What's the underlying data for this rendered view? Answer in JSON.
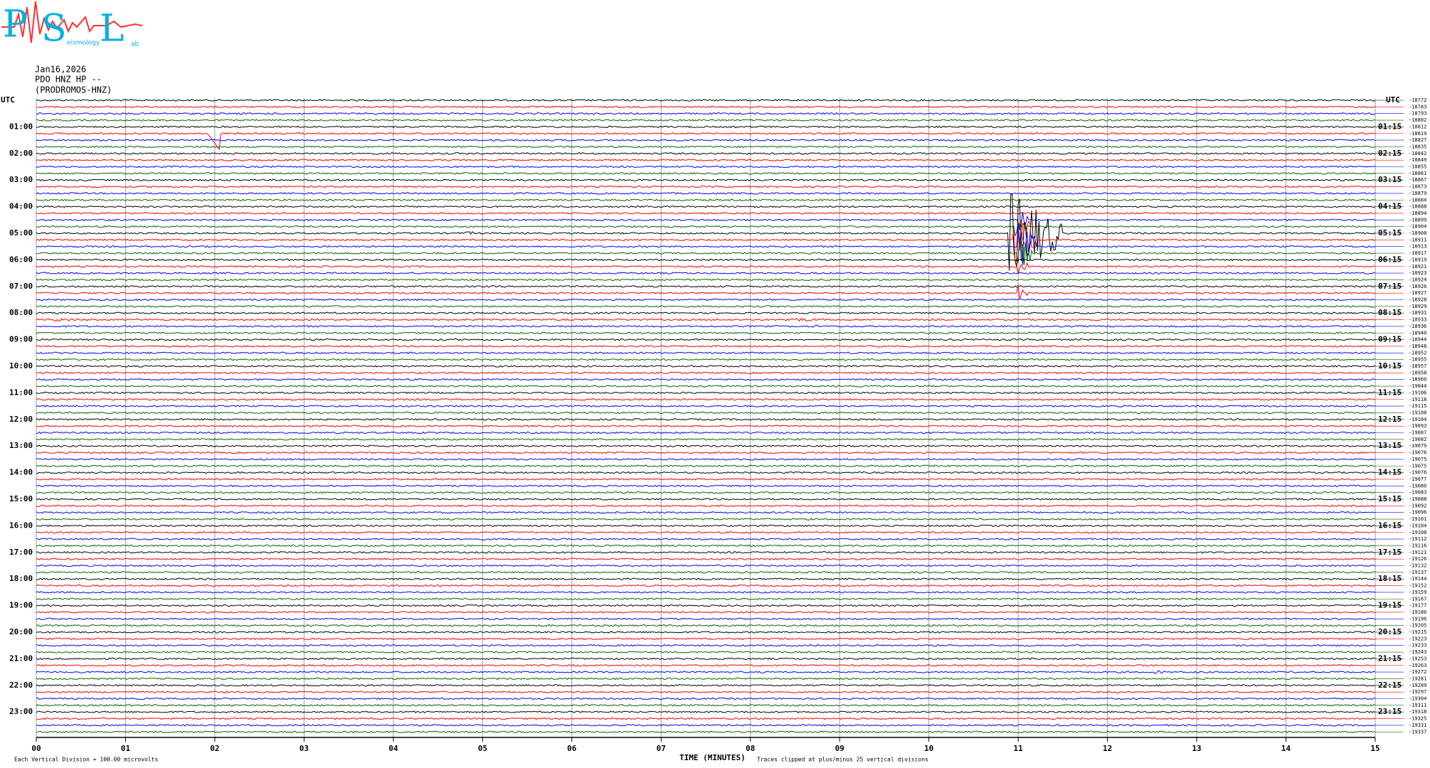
{
  "header": {
    "logo_letters": [
      "P",
      "S",
      "L"
    ],
    "logo_small": [
      "eismology",
      "ab"
    ],
    "date": "Jan16,2026",
    "station": "PDO HNZ HP --",
    "channel": "(PRODROMOS-HNZ)"
  },
  "chart_data": {
    "type": "helicorder",
    "left_axis_label": "UTC",
    "right_axis_label": "UTC",
    "left_time_labels": [
      "01:00",
      "02:00",
      "03:00",
      "04:00",
      "05:00",
      "06:00",
      "07:00",
      "08:00",
      "09:00",
      "10:00",
      "11:00",
      "12:00",
      "13:00",
      "14:00",
      "15:00",
      "16:00",
      "17:00",
      "18:00",
      "19:00",
      "20:00",
      "21:00",
      "22:00",
      "23:00"
    ],
    "right_time_labels": [
      "01:15",
      "02:15",
      "03:15",
      "04:15",
      "05:15",
      "06:15",
      "07:15",
      "08:15",
      "09:15",
      "10:15",
      "11:15",
      "12:15",
      "13:15",
      "14:15",
      "15:15",
      "16:15",
      "17:15",
      "18:15",
      "19:15",
      "20:15",
      "21:15",
      "22:15",
      "23:15"
    ],
    "trace_colors": [
      "#000000",
      "#ff0000",
      "#0000ff",
      "#006400"
    ],
    "trace_offsets": [
      -18772,
      -18783,
      -18793,
      -18802,
      -18812,
      -18819,
      -18827,
      -18835,
      -18842,
      -18849,
      -18855,
      -18861,
      -18867,
      -18873,
      -18879,
      -18884,
      -18888,
      -18894,
      -18899,
      -18904,
      -18908,
      -18911,
      -18913,
      -18917,
      -18919,
      -18921,
      -18923,
      -18924,
      -18926,
      -18927,
      -18928,
      -18929,
      -18931,
      -18933,
      -18936,
      -18940,
      -18944,
      -18948,
      -18952,
      -18955,
      -18957,
      -18958,
      -18960,
      -19044,
      -19106,
      -19118,
      -19115,
      -19108,
      -19104,
      -19093,
      -19087,
      -19082,
      -19079,
      -19076,
      -19075,
      -19075,
      -19076,
      -19077,
      -19080,
      -19083,
      -19088,
      -19092,
      -19096,
      -19101,
      -19104,
      -19108,
      -19112,
      -19116,
      -19121,
      -19126,
      -19132,
      -19137,
      -19144,
      -19152,
      -19159,
      -19167,
      -19177,
      -19186,
      -19196,
      -19205,
      -19215,
      -19223,
      -19233,
      -19243,
      -19253,
      -19263,
      -19272,
      -19281,
      -19289,
      -19297,
      -19304,
      -19311,
      -19318,
      -19325,
      -19331,
      -19337
    ],
    "xlabel": "TIME (MINUTES)",
    "xlim": [
      0,
      15
    ],
    "xticks": [
      {
        "value": 0,
        "label": "00"
      },
      {
        "value": 1,
        "label": "01"
      },
      {
        "value": 2,
        "label": "02"
      },
      {
        "value": 3,
        "label": "03"
      },
      {
        "value": 4,
        "label": "04"
      },
      {
        "value": 5,
        "label": "05"
      },
      {
        "value": 6,
        "label": "06"
      },
      {
        "value": 7,
        "label": "07"
      },
      {
        "value": 8,
        "label": "08"
      },
      {
        "value": 9,
        "label": "09"
      },
      {
        "value": 10,
        "label": "10"
      },
      {
        "value": 11,
        "label": "11"
      },
      {
        "value": 12,
        "label": "12"
      },
      {
        "value": 13,
        "label": "13"
      },
      {
        "value": 14,
        "label": "14"
      },
      15
    ],
    "scale_note": "Each Vertical Division =  100.00 microvolts",
    "clip_note": "Traces clipped at plus/minus 25 vertical divisions",
    "grid": true
  }
}
